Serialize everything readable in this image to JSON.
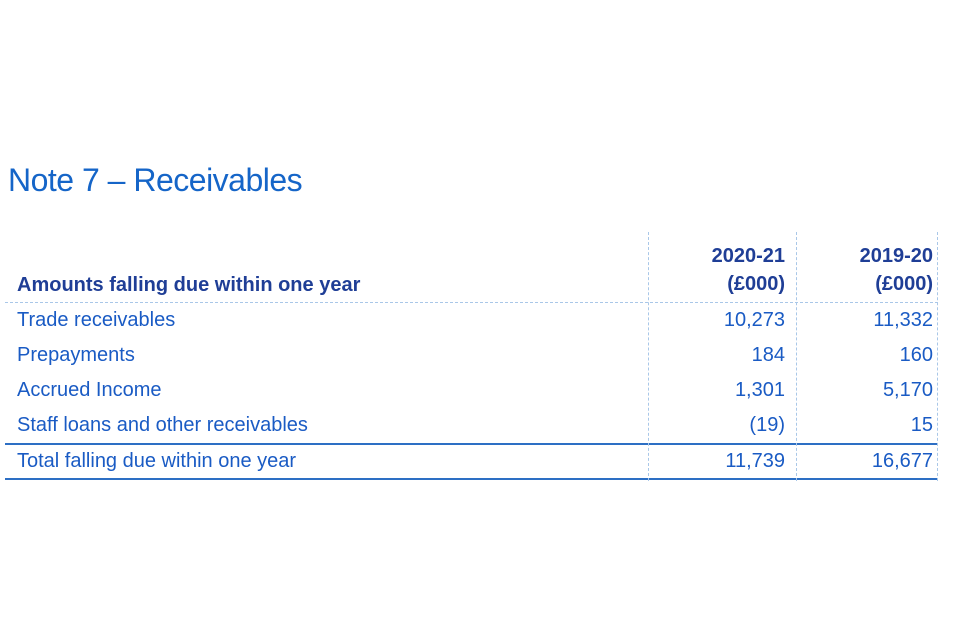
{
  "page": {
    "title": "Note 7 – Receivables"
  },
  "table": {
    "header": {
      "row_label": "Amounts falling due within one year",
      "columns": [
        {
          "year": "2020-21",
          "unit": "(£000)"
        },
        {
          "year": "2019-20",
          "unit": "(£000)"
        }
      ]
    },
    "rows": [
      {
        "label": "Trade receivables",
        "values": [
          "10,273",
          "11,332"
        ]
      },
      {
        "label": "Prepayments",
        "values": [
          "184",
          "160"
        ]
      },
      {
        "label": "Accrued Income",
        "values": [
          "1,301",
          "5,170"
        ]
      },
      {
        "label": "Staff loans and other receivables",
        "values": [
          "(19)",
          "15"
        ]
      }
    ],
    "total": {
      "label": "Total falling due within one year",
      "values": [
        "11,739",
        "16,677"
      ]
    }
  },
  "colors": {
    "title_text": "#1565c8",
    "header_text": "#1f3e96",
    "body_text": "#1a5bc4",
    "solid_rule": "#2d6fc4",
    "dashed_rule": "#a9c7e8",
    "background": "#ffffff"
  }
}
